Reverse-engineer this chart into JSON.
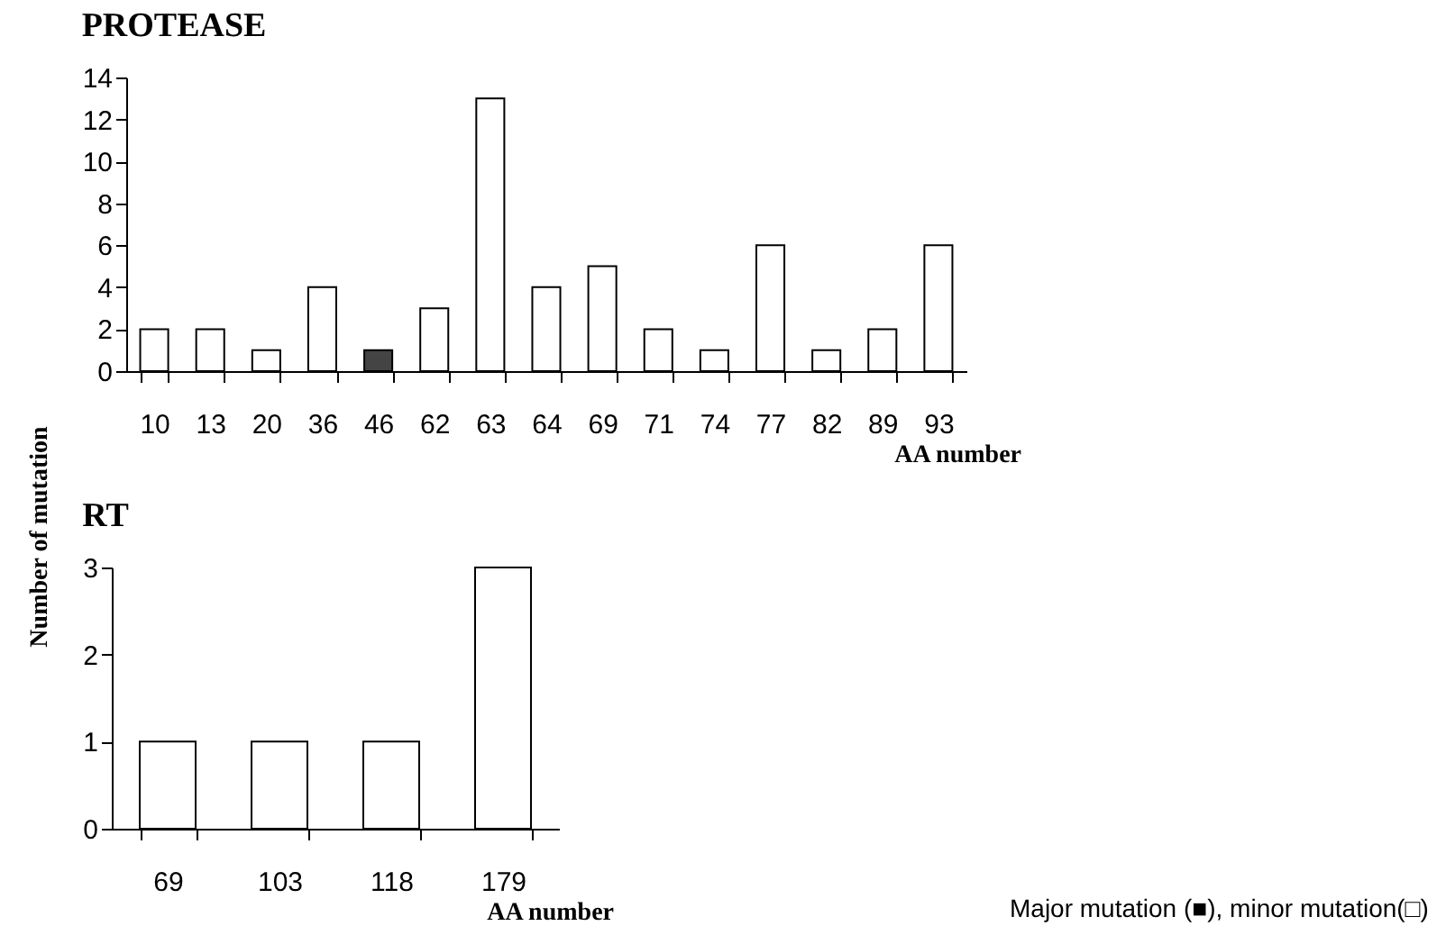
{
  "chart_data": [
    {
      "type": "bar",
      "title": "PROTEASE",
      "xlabel": "AA number",
      "ylabel": "Number of mutation",
      "categories": [
        "10",
        "13",
        "20",
        "36",
        "46",
        "62",
        "63",
        "64",
        "69",
        "71",
        "74",
        "77",
        "82",
        "89",
        "93"
      ],
      "values": [
        2,
        2,
        1,
        4,
        1,
        3,
        13,
        4,
        5,
        2,
        1,
        6,
        1,
        2,
        6
      ],
      "colors": [
        "#ffffff",
        "#ffffff",
        "#ffffff",
        "#ffffff",
        "#444444",
        "#ffffff",
        "#ffffff",
        "#ffffff",
        "#ffffff",
        "#ffffff",
        "#ffffff",
        "#ffffff",
        "#ffffff",
        "#ffffff",
        "#ffffff"
      ],
      "ylim": [
        0,
        14
      ],
      "yticks": [
        0,
        2,
        4,
        6,
        8,
        10,
        12,
        14
      ],
      "grid": false
    },
    {
      "type": "bar",
      "title": "RT",
      "xlabel": "AA number",
      "categories": [
        "69",
        "103",
        "118",
        "179"
      ],
      "values": [
        1,
        1,
        1,
        3
      ],
      "colors": [
        "#ffffff",
        "#ffffff",
        "#ffffff",
        "#ffffff"
      ],
      "ylim": [
        0,
        3
      ],
      "yticks": [
        0,
        1,
        2,
        3
      ],
      "grid": false,
      "annotations": [
        "Major mutation (■), minor mutation(□)"
      ]
    }
  ]
}
